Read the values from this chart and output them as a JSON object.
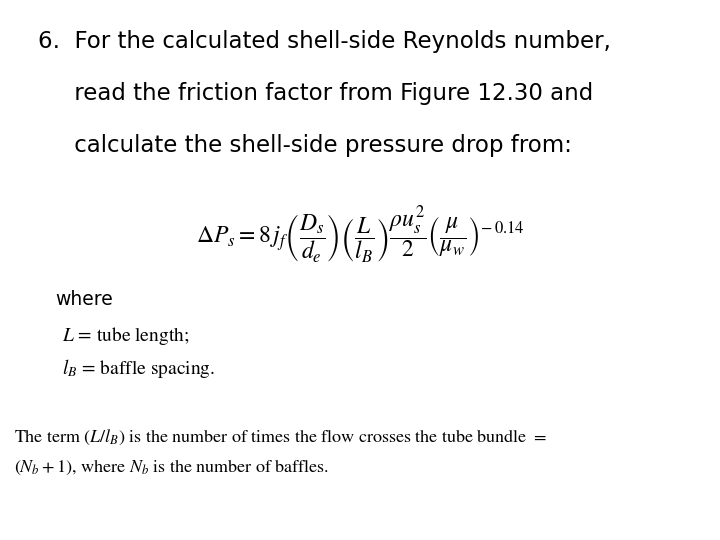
{
  "bg_color": "#ffffff",
  "title_lines": [
    "6.  For the calculated shell-side Reynolds number,",
    "     read the friction factor from Figure 12.30 and",
    "     calculate the shell-side pressure drop from:"
  ],
  "equation": "$\\Delta P_s = 8\\,j_f\\left(\\dfrac{D_s}{d_e}\\right)\\left(\\dfrac{L}{l_B}\\right)\\dfrac{\\rho u_s^2}{2}\\left(\\dfrac{\\mu}{\\mu_w}\\right)^{\\!-0.14}$",
  "where_label": "where",
  "def1": "$L$ = tube length;",
  "def2": "$l_B$ = baffle spacing.",
  "footnote_line1": "The term $(L/l_B)$ is the number of times the flow crosses the tube bundle $=$",
  "footnote_line2": "$(N_b + 1)$, where $N_b$ is the number of baffles.",
  "title_fontsize": 16.5,
  "eq_fontsize": 17,
  "where_fontsize": 13.5,
  "def_fontsize": 14,
  "footnote_fontsize": 13
}
